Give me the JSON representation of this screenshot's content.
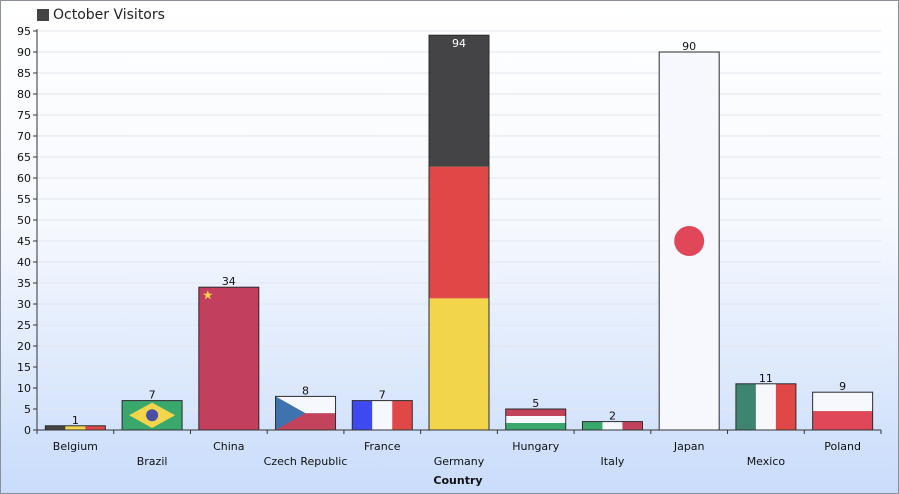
{
  "chart_data": {
    "type": "bar",
    "title": "",
    "legend": {
      "label": "October Visitors",
      "color": "#444446",
      "position": "top-left"
    },
    "xlabel": "Country",
    "ylabel": "",
    "ylim": [
      0,
      95
    ],
    "yticks": [
      0,
      5,
      10,
      15,
      20,
      25,
      30,
      35,
      40,
      45,
      50,
      55,
      60,
      65,
      70,
      75,
      80,
      85,
      90,
      95
    ],
    "grid": true,
    "categories": [
      "Belgium",
      "Brazil",
      "China",
      "Czech Republic",
      "France",
      "Germany",
      "Hungary",
      "Italy",
      "Japan",
      "Mexico",
      "Poland"
    ],
    "values": [
      1,
      7,
      34,
      8,
      7,
      94,
      5,
      2,
      90,
      11,
      9
    ],
    "fills": [
      "flag-belgium",
      "flag-brazil",
      "flag-china",
      "flag-czech",
      "flag-france",
      "flag-germany",
      "flag-hungary",
      "flag-italy",
      "flag-japan",
      "flag-mexico",
      "flag-poland"
    ],
    "colors": {
      "black": "#444446",
      "red": "#e04848",
      "yellow": "#f2d54b",
      "green": "#3aa76d",
      "white": "#f6f8fd",
      "blue": "#3f49f0",
      "navy": "#4a4fa5",
      "china_red": "#c2405e",
      "czech_blue": "#3e73b0",
      "hungary_red": "#c4435c",
      "teal": "#3f8470",
      "poland_red": "#e0485a"
    }
  }
}
